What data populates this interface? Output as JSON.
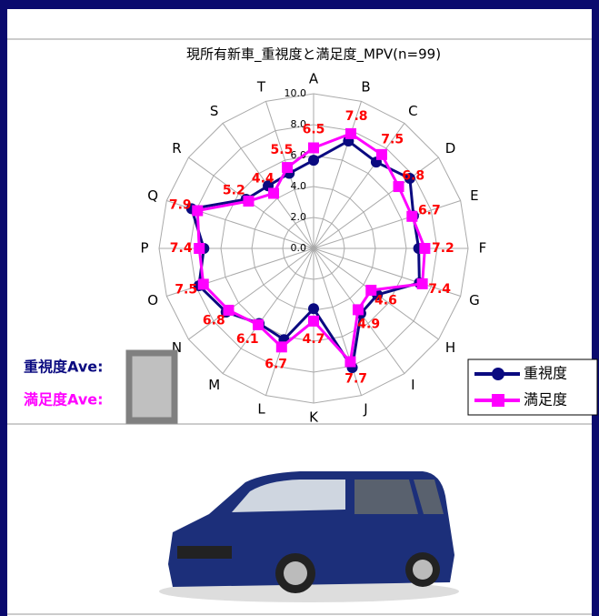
{
  "chart_data": {
    "type": "radar",
    "title": "現所有新車_重視度と満足度_MPV(n=99)",
    "categories": [
      "A",
      "B",
      "C",
      "D",
      "E",
      "F",
      "G",
      "H",
      "I",
      "J",
      "K",
      "L",
      "M",
      "N",
      "O",
      "P",
      "Q",
      "R",
      "S",
      "T"
    ],
    "series": [
      {
        "name": "重視度",
        "color": "#0a0a80",
        "marker": "circle",
        "values": [
          5.7,
          7.3,
          6.9,
          7.7,
          6.8,
          6.8,
          7.2,
          5.1,
          5.2,
          8.1,
          3.9,
          6.2,
          6.0,
          7.0,
          7.8,
          7.1,
          8.3,
          5.4,
          5.0,
          5.1
        ]
      },
      {
        "name": "満足度",
        "color": "#ff00ff",
        "marker": "square",
        "values": [
          6.5,
          7.8,
          7.5,
          6.8,
          6.7,
          7.2,
          7.4,
          4.6,
          4.9,
          7.7,
          4.7,
          6.7,
          6.1,
          6.8,
          7.5,
          7.4,
          7.9,
          5.2,
          4.4,
          5.5
        ]
      }
    ],
    "data_label_color": "#ff0000",
    "ylim": [
      0,
      10
    ],
    "yticks": [
      {
        "value": 0,
        "label": "0.0"
      },
      {
        "value": 2,
        "label": "2.0"
      },
      {
        "value": 4,
        "label": "4.0"
      },
      {
        "value": 6,
        "label": "6.0"
      },
      {
        "value": 8,
        "label": "8.0"
      },
      {
        "value": 10,
        "label": "10.0"
      }
    ],
    "grid": true,
    "legend": "bottom-right",
    "side_labels": [
      "重視度Ave:",
      "満足度Ave:"
    ]
  }
}
